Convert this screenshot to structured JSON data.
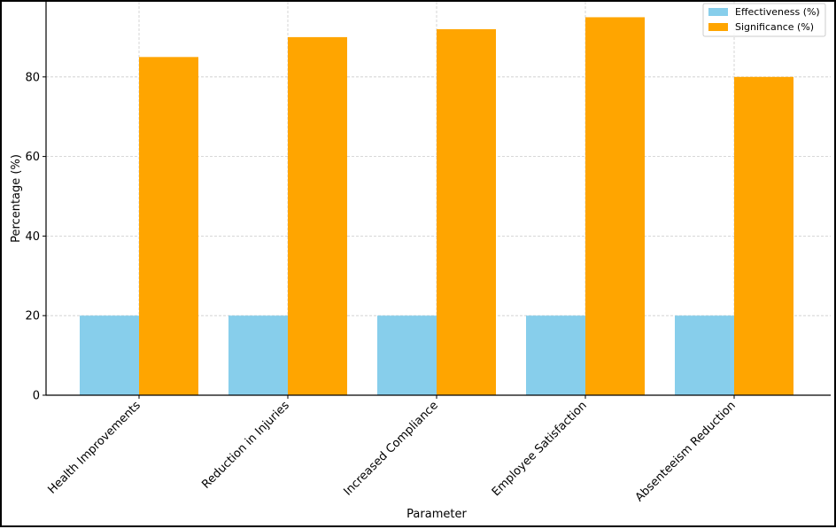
{
  "chart_data": {
    "type": "bar",
    "title": "",
    "xlabel": "Parameter",
    "ylabel": "Percentage (%)",
    "ylim": [
      0,
      100
    ],
    "yticks": [
      0,
      20,
      40,
      60,
      80
    ],
    "categories": [
      "Health Improvements",
      "Reduction in Injuries",
      "Increased Compliance",
      "Employee Satisfaction",
      "Absenteeism Reduction"
    ],
    "series": [
      {
        "name": "Effectiveness (%)",
        "color": "#87CEEB",
        "values": [
          20,
          20,
          20,
          20,
          20
        ]
      },
      {
        "name": "Significance (%)",
        "color": "#FFA500",
        "values": [
          85,
          90,
          92,
          95,
          80
        ]
      }
    ],
    "grid": true,
    "legend": "top-right"
  }
}
